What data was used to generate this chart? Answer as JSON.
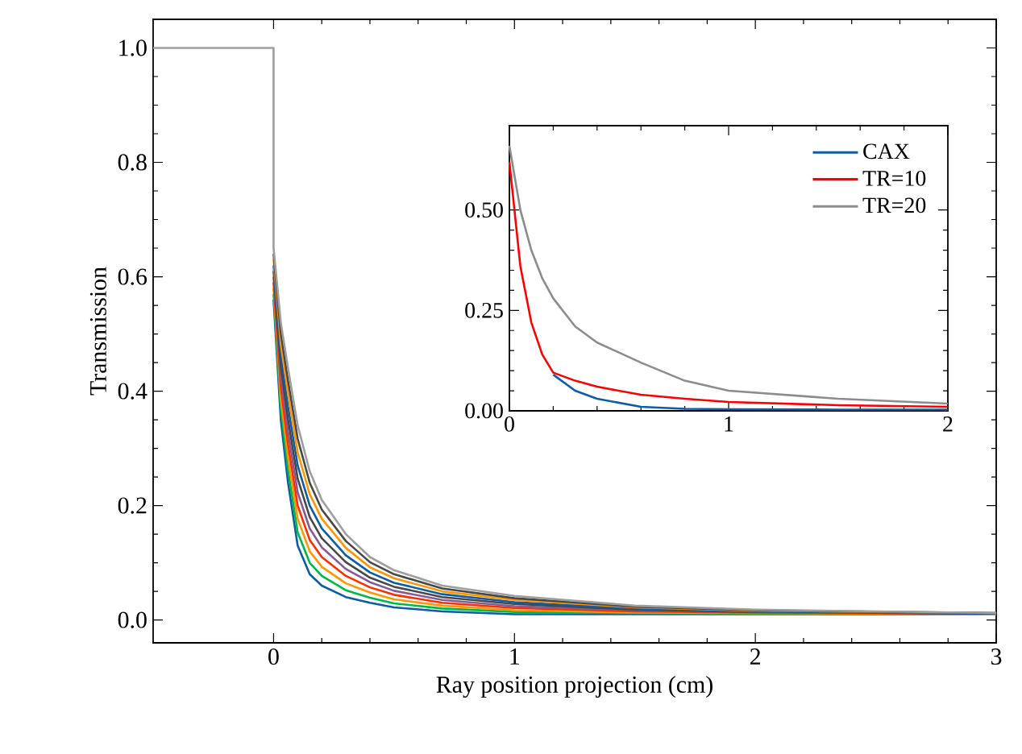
{
  "chart_data": [
    {
      "type": "line",
      "xlabel": "Ray position projection (cm)",
      "ylabel": "Transmission",
      "xlim": [
        -0.5,
        3
      ],
      "ylim": [
        -0.04,
        1.05
      ],
      "xticks": [
        0,
        1,
        2,
        3
      ],
      "yticks": [
        {
          "value": 0,
          "label": "0.0"
        },
        {
          "value": 0.2,
          "label": "0.2"
        },
        {
          "value": 0.4,
          "label": "0.4"
        },
        {
          "value": 0.6,
          "label": "0.6"
        },
        {
          "value": 0.8,
          "label": "0.8"
        },
        {
          "value": 1,
          "label": "1.0"
        }
      ],
      "x": [
        -0.5,
        0,
        0,
        0.03,
        0.06,
        0.1,
        0.15,
        0.2,
        0.3,
        0.4,
        0.5,
        0.7,
        1.0,
        1.5,
        2.0,
        3.0
      ],
      "series": [
        {
          "color": "#0c5da5",
          "values": [
            null,
            null,
            0.56,
            0.35,
            0.24,
            0.13,
            0.08,
            0.06,
            0.04,
            0.03,
            0.022,
            0.015,
            0.01,
            0.01,
            0.01,
            0.01
          ]
        },
        {
          "color": "#00b945",
          "values": [
            null,
            null,
            0.57,
            0.369,
            0.262,
            0.153,
            0.1,
            0.077,
            0.052,
            0.039,
            0.029,
            0.02,
            0.014,
            0.012,
            0.011,
            0.01
          ]
        },
        {
          "color": "#ff9500",
          "values": [
            null,
            null,
            0.58,
            0.388,
            0.284,
            0.177,
            0.12,
            0.093,
            0.064,
            0.048,
            0.036,
            0.025,
            0.017,
            0.013,
            0.012,
            0.01
          ]
        },
        {
          "color": "#ff2c00",
          "values": [
            null,
            null,
            0.59,
            0.407,
            0.307,
            0.2,
            0.14,
            0.11,
            0.077,
            0.057,
            0.044,
            0.03,
            0.021,
            0.015,
            0.013,
            0.011
          ]
        },
        {
          "color": "#845b97",
          "values": [
            null,
            null,
            0.6,
            0.426,
            0.329,
            0.223,
            0.16,
            0.127,
            0.089,
            0.066,
            0.051,
            0.035,
            0.024,
            0.017,
            0.014,
            0.011
          ]
        },
        {
          "color": "#474747",
          "values": [
            null,
            null,
            0.61,
            0.444,
            0.351,
            0.247,
            0.18,
            0.143,
            0.101,
            0.074,
            0.058,
            0.04,
            0.028,
            0.018,
            0.014,
            0.011
          ]
        },
        {
          "color": "#0c5da5",
          "values": [
            null,
            null,
            0.62,
            0.463,
            0.373,
            0.27,
            0.2,
            0.16,
            0.113,
            0.083,
            0.065,
            0.045,
            0.031,
            0.02,
            0.015,
            0.011
          ]
        },
        {
          "color": "#ff9500",
          "values": [
            null,
            null,
            0.63,
            0.482,
            0.396,
            0.293,
            0.22,
            0.177,
            0.126,
            0.092,
            0.073,
            0.05,
            0.035,
            0.022,
            0.016,
            0.012
          ]
        },
        {
          "color": "#474747",
          "values": [
            null,
            null,
            0.64,
            0.501,
            0.418,
            0.317,
            0.24,
            0.193,
            0.138,
            0.101,
            0.08,
            0.055,
            0.038,
            0.023,
            0.017,
            0.012
          ]
        },
        {
          "color": "#9e9e9e",
          "values": [
            1,
            1,
            0.65,
            0.52,
            0.44,
            0.34,
            0.26,
            0.21,
            0.15,
            0.11,
            0.087,
            0.06,
            0.042,
            0.025,
            0.018,
            0.012
          ]
        }
      ]
    },
    {
      "type": "line",
      "xlim": [
        0,
        2
      ],
      "ylim": [
        0,
        0.71
      ],
      "legend": "top right",
      "xticks": [
        0,
        1,
        2
      ],
      "yticks": [
        {
          "value": 0,
          "label": "0.00"
        },
        {
          "value": 0.25,
          "label": "0.25"
        },
        {
          "value": 0.5,
          "label": "0.50"
        }
      ],
      "x": [
        0,
        0.05,
        0.1,
        0.15,
        0.2,
        0.3,
        0.4,
        0.6,
        0.8,
        1.0,
        1.5,
        2.0
      ],
      "series": [
        {
          "name": "CAX",
          "color": "#0c5da5",
          "values": [
            null,
            null,
            null,
            null,
            0.09,
            0.05,
            0.03,
            0.01,
            0.005,
            0.004,
            0.003,
            0.003
          ]
        },
        {
          "name": "TR=10",
          "color": "#ff0000",
          "values": [
            0.62,
            0.36,
            0.22,
            0.14,
            0.095,
            0.075,
            0.06,
            0.04,
            0.03,
            0.022,
            0.014,
            0.01
          ]
        },
        {
          "name": "TR=20",
          "color": "#8c8c8c",
          "values": [
            0.66,
            0.5,
            0.4,
            0.33,
            0.28,
            0.21,
            0.17,
            0.12,
            0.075,
            0.05,
            0.03,
            0.018
          ]
        }
      ]
    }
  ]
}
